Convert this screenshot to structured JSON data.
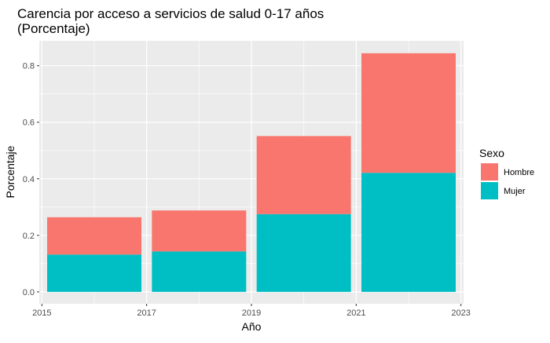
{
  "chart_data": {
    "type": "bar",
    "stacked": true,
    "title": "Carencia por acceso a servicios de salud 0-17 años",
    "subtitle": "(Porcentaje)",
    "xlabel": "Año",
    "ylabel": "Porcentaje",
    "x": [
      2016,
      2018,
      2020,
      2022
    ],
    "xlim": [
      2014.95,
      2023.05
    ],
    "ylim": [
      -0.042,
      0.888
    ],
    "xticks": [
      2015,
      2017,
      2019,
      2021,
      2023
    ],
    "xtick_labels": [
      "2015",
      "2017",
      "2019",
      "2021",
      "2023"
    ],
    "yticks": [
      0.0,
      0.2,
      0.4,
      0.6,
      0.8
    ],
    "ytick_labels": [
      "0.0",
      "0.2",
      "0.4",
      "0.6",
      "0.8"
    ],
    "bar_width_years": 1.8,
    "series": [
      {
        "name": "Mujer",
        "color": "#00BFC4",
        "values": [
          0.132,
          0.143,
          0.275,
          0.421
        ]
      },
      {
        "name": "Hombre",
        "color": "#F8766D",
        "values": [
          0.132,
          0.145,
          0.276,
          0.423
        ]
      }
    ],
    "legend": {
      "title": "Sexo",
      "position": "right",
      "entries": [
        {
          "label": "Hombre",
          "color": "#F8766D"
        },
        {
          "label": "Mujer",
          "color": "#00BFC4"
        }
      ]
    },
    "grid": true,
    "panel_background": "#EBEBEB",
    "grid_color": "#FFFFFF"
  }
}
